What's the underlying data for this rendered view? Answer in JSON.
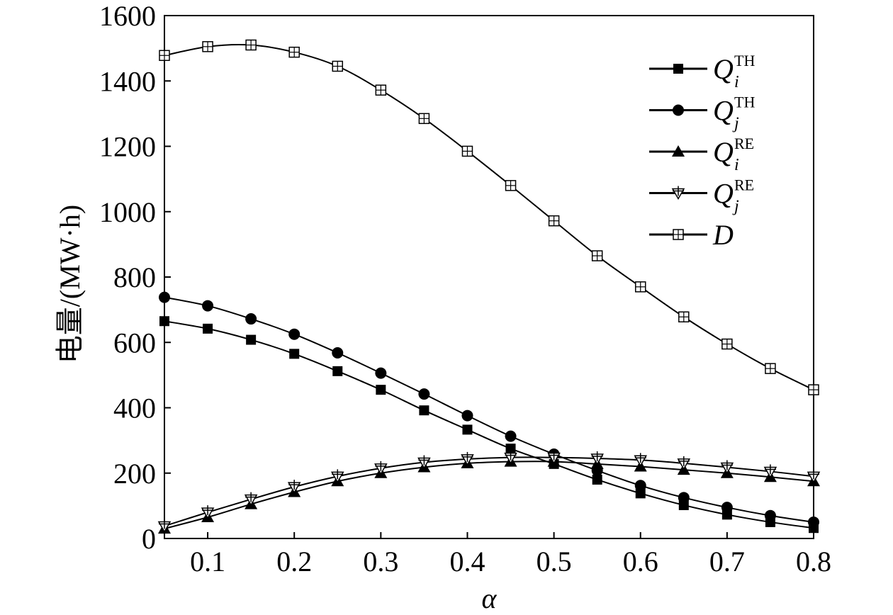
{
  "chart_data": {
    "type": "line",
    "title": "",
    "xlabel": "α",
    "ylabel": "电量/(MW·h)",
    "xlim": [
      0.05,
      0.8
    ],
    "ylim": [
      0,
      1600
    ],
    "grid": false,
    "legend_position": "top-right",
    "x": [
      0.05,
      0.1,
      0.15,
      0.2,
      0.25,
      0.3,
      0.35,
      0.4,
      0.45,
      0.5,
      0.55,
      0.6,
      0.65,
      0.7,
      0.75,
      0.8
    ],
    "x_ticks": [
      "0.1",
      "0.2",
      "0.3",
      "0.4",
      "0.5",
      "0.6",
      "0.7",
      "0.8"
    ],
    "x_tick_values": [
      0.1,
      0.2,
      0.3,
      0.4,
      0.5,
      0.6,
      0.7,
      0.8
    ],
    "y_ticks": [
      "0",
      "200",
      "400",
      "600",
      "800",
      "1000",
      "1200",
      "1400",
      "1600"
    ],
    "y_tick_values": [
      0,
      200,
      400,
      600,
      800,
      1000,
      1200,
      1400,
      1600
    ],
    "series": [
      {
        "name": "Q_i^TH",
        "name_base": "Q",
        "name_sub": "i",
        "name_sup": "TH",
        "marker": "filled-square",
        "values": [
          665,
          642,
          608,
          565,
          512,
          455,
          392,
          333,
          275,
          228,
          180,
          138,
          102,
          73,
          50,
          32
        ]
      },
      {
        "name": "Q_j^TH",
        "name_base": "Q",
        "name_sub": "j",
        "name_sup": "TH",
        "marker": "filled-circle",
        "values": [
          738,
          712,
          672,
          625,
          568,
          506,
          442,
          376,
          313,
          258,
          208,
          162,
          125,
          95,
          70,
          50
        ]
      },
      {
        "name": "Q_i^RE",
        "name_base": "Q",
        "name_sub": "i",
        "name_sup": "RE",
        "marker": "filled-triangle",
        "values": [
          30,
          65,
          105,
          142,
          175,
          200,
          218,
          230,
          235,
          235,
          228,
          220,
          210,
          200,
          188,
          175
        ]
      },
      {
        "name": "Q_j^RE",
        "name_base": "Q",
        "name_sub": "j",
        "name_sup": "RE",
        "marker": "open-inverted-triangle-plus",
        "values": [
          38,
          80,
          120,
          158,
          190,
          215,
          233,
          243,
          248,
          248,
          245,
          240,
          230,
          218,
          205,
          190
        ]
      },
      {
        "name": "D",
        "name_base": "D",
        "name_sub": "",
        "name_sup": "",
        "marker": "open-square-plus",
        "values": [
          1478,
          1505,
          1510,
          1488,
          1445,
          1372,
          1285,
          1185,
          1080,
          972,
          865,
          770,
          678,
          595,
          520,
          455
        ]
      }
    ]
  }
}
